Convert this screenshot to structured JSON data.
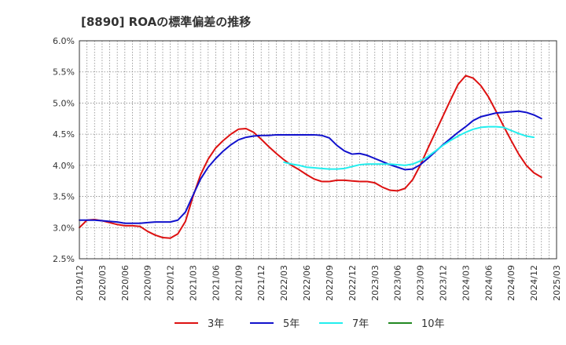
{
  "chart_data": {
    "type": "line",
    "title": "[8890]  ROAの標準偏差の推移",
    "xlabel": "",
    "ylabel": "",
    "ylim": [
      2.5,
      6.0
    ],
    "yticks": [
      "2.5%",
      "3.0%",
      "3.5%",
      "4.0%",
      "4.5%",
      "5.0%",
      "5.5%",
      "6.0%"
    ],
    "x_tick_labels": [
      "2019/12",
      "2020/03",
      "2020/06",
      "2020/09",
      "2020/12",
      "2021/03",
      "2021/06",
      "2021/09",
      "2021/12",
      "2022/03",
      "2022/06",
      "2022/09",
      "2022/12",
      "2023/03",
      "2023/06",
      "2023/09",
      "2023/12",
      "2024/03",
      "2024/06",
      "2024/09",
      "2024/12",
      "2025/03"
    ],
    "x_start": "2019/12",
    "x_end": "2025/03",
    "grid": true,
    "legend_position": "bottom",
    "series": [
      {
        "name": "3年",
        "color": "#dd1111",
        "start": "2019/12",
        "values": [
          3.0,
          3.12,
          3.13,
          3.11,
          3.08,
          3.05,
          3.03,
          3.03,
          3.02,
          2.94,
          2.88,
          2.84,
          2.83,
          2.9,
          3.1,
          3.5,
          3.85,
          4.1,
          4.28,
          4.4,
          4.5,
          4.58,
          4.59,
          4.53,
          4.42,
          4.3,
          4.19,
          4.09,
          4.0,
          3.93,
          3.85,
          3.78,
          3.74,
          3.74,
          3.76,
          3.76,
          3.75,
          3.74,
          3.74,
          3.72,
          3.65,
          3.6,
          3.59,
          3.63,
          3.77,
          4.0,
          4.27,
          4.53,
          4.79,
          5.05,
          5.3,
          5.44,
          5.4,
          5.28,
          5.1,
          4.87,
          4.63,
          4.4,
          4.18,
          4.0,
          3.88,
          3.81
        ]
      },
      {
        "name": "5年",
        "color": "#1111cc",
        "start": "2019/12",
        "values": [
          3.12,
          3.12,
          3.12,
          3.11,
          3.1,
          3.09,
          3.07,
          3.07,
          3.07,
          3.08,
          3.09,
          3.09,
          3.09,
          3.12,
          3.25,
          3.52,
          3.78,
          3.97,
          4.11,
          4.23,
          4.33,
          4.41,
          4.45,
          4.47,
          4.48,
          4.48,
          4.49,
          4.49,
          4.49,
          4.49,
          4.49,
          4.49,
          4.48,
          4.44,
          4.32,
          4.23,
          4.18,
          4.19,
          4.16,
          4.11,
          4.06,
          4.01,
          3.97,
          3.93,
          3.94,
          4.01,
          4.11,
          4.22,
          4.33,
          4.43,
          4.53,
          4.62,
          4.72,
          4.78,
          4.81,
          4.84,
          4.85,
          4.86,
          4.87,
          4.85,
          4.81,
          4.75
        ]
      },
      {
        "name": "7年",
        "color": "#22eeee",
        "start": "2022/03",
        "values": [
          4.05,
          4.02,
          4.0,
          3.97,
          3.96,
          3.95,
          3.94,
          3.94,
          3.95,
          3.98,
          4.01,
          4.02,
          4.02,
          4.02,
          4.02,
          4.01,
          4.0,
          4.02,
          4.07,
          4.14,
          4.23,
          4.32,
          4.4,
          4.47,
          4.53,
          4.58,
          4.61,
          4.62,
          4.62,
          4.61,
          4.56,
          4.51,
          4.47,
          4.45
        ]
      },
      {
        "name": "10年",
        "color": "#228822",
        "start": "2019/12",
        "values": []
      }
    ]
  }
}
